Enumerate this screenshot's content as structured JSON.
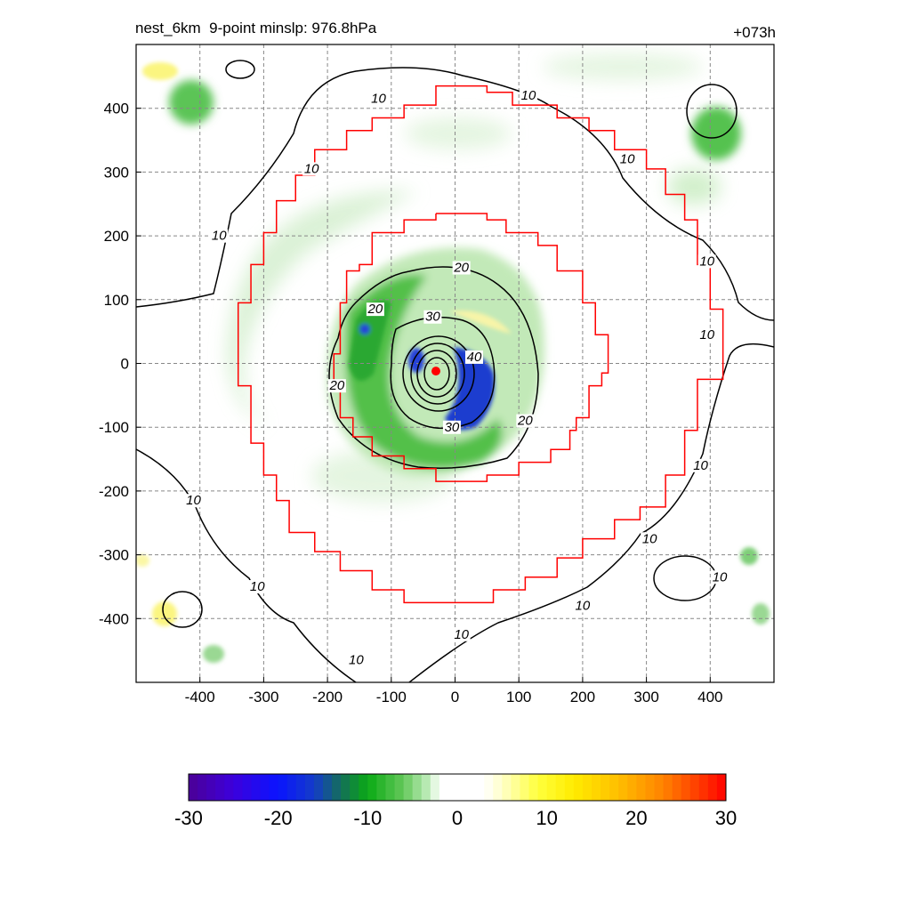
{
  "title": {
    "left": "nest_6km  9-point minslp: 976.8hPa",
    "right": "+073h"
  },
  "chart_data": {
    "type": "heatmap",
    "description_axes": "storm-relative distance",
    "xlim": [
      -500,
      500
    ],
    "ylim": [
      -500,
      500
    ],
    "x_ticks": [
      -400,
      -300,
      -200,
      -100,
      0,
      100,
      200,
      300,
      400
    ],
    "y_ticks": [
      -400,
      -300,
      -200,
      -100,
      0,
      100,
      200,
      300,
      400
    ],
    "grid": true,
    "colorbar": {
      "min": -30,
      "max": 30,
      "ticks": [
        -30,
        -20,
        -10,
        0,
        10,
        20,
        30
      ]
    },
    "contour_levels": [
      10,
      20,
      30,
      40
    ],
    "contour_labels": [
      {
        "text": "10",
        "x": -120,
        "y": 410
      },
      {
        "text": "10",
        "x": 115,
        "y": 415
      },
      {
        "text": "10",
        "x": -225,
        "y": 300
      },
      {
        "text": "10",
        "x": 270,
        "y": 315
      },
      {
        "text": "10",
        "x": -370,
        "y": 195
      },
      {
        "text": "10",
        "x": 395,
        "y": 155
      },
      {
        "text": "10",
        "x": 395,
        "y": 40
      },
      {
        "text": "20",
        "x": -125,
        "y": 80
      },
      {
        "text": "20",
        "x": 10,
        "y": 145
      },
      {
        "text": "30",
        "x": -35,
        "y": 68
      },
      {
        "text": "40",
        "x": 30,
        "y": 5
      },
      {
        "text": "20",
        "x": -185,
        "y": -40
      },
      {
        "text": "30",
        "x": -5,
        "y": -105
      },
      {
        "text": "20",
        "x": 110,
        "y": -95
      },
      {
        "text": "10",
        "x": 385,
        "y": -165
      },
      {
        "text": "10",
        "x": -410,
        "y": -220
      },
      {
        "text": "10",
        "x": 305,
        "y": -280
      },
      {
        "text": "10",
        "x": 415,
        "y": -340
      },
      {
        "text": "10",
        "x": -310,
        "y": -355
      },
      {
        "text": "10",
        "x": 200,
        "y": -385
      },
      {
        "text": "10",
        "x": 10,
        "y": -430
      },
      {
        "text": "10",
        "x": -155,
        "y": -470
      }
    ],
    "center_marker": {
      "x": -30,
      "y": -12
    }
  }
}
